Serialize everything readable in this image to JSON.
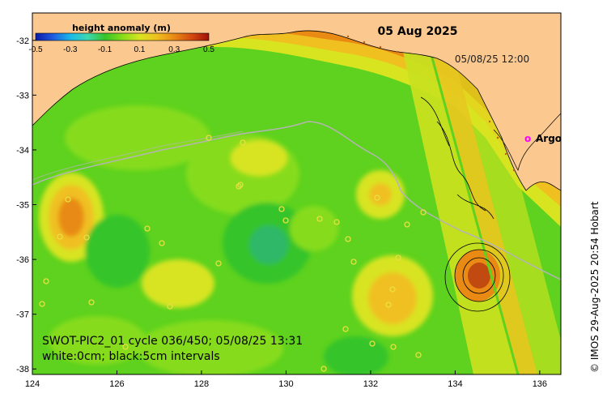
{
  "map": {
    "date_title": "05 Aug 2025",
    "track_time": "05/08/25 12:00",
    "argo_marker": "o",
    "argo_label": "Argo",
    "swot_caption": "SWOT-PIC2_01 cycle 036/450; 05/08/25 13:31",
    "contour_caption": "white:0cm; black:5cm intervals",
    "credit": "© IMOS 29-Aug-2025 20:54 Hobart",
    "colorbar": {
      "title": "height anomaly (m)",
      "ticks": [
        "-0.5",
        "-0.3",
        "-0.1",
        "0.1",
        "0.3",
        "0.5"
      ],
      "range": [
        -0.5,
        0.5
      ],
      "colors": [
        "#0b1aa8",
        "#1f5be0",
        "#19b8e8",
        "#3ed8b0",
        "#36c42a",
        "#86dc1a",
        "#d8e420",
        "#f0c020",
        "#e88a14",
        "#d44a10",
        "#a01008"
      ]
    },
    "lon_ticks": [
      "124",
      "126",
      "128",
      "130",
      "132",
      "134",
      "136"
    ],
    "lat_ticks": [
      "-32",
      "-33",
      "-34",
      "-35",
      "-36",
      "-37",
      "-38"
    ],
    "lon_range": [
      124,
      136.5
    ],
    "lat_range": [
      -31.5,
      -38.1
    ],
    "colors": {
      "land": "#fbc890",
      "ocean_base": "#5ed21e",
      "argo": "#ff00ff",
      "shelf_line": "#b4b4b4"
    }
  }
}
